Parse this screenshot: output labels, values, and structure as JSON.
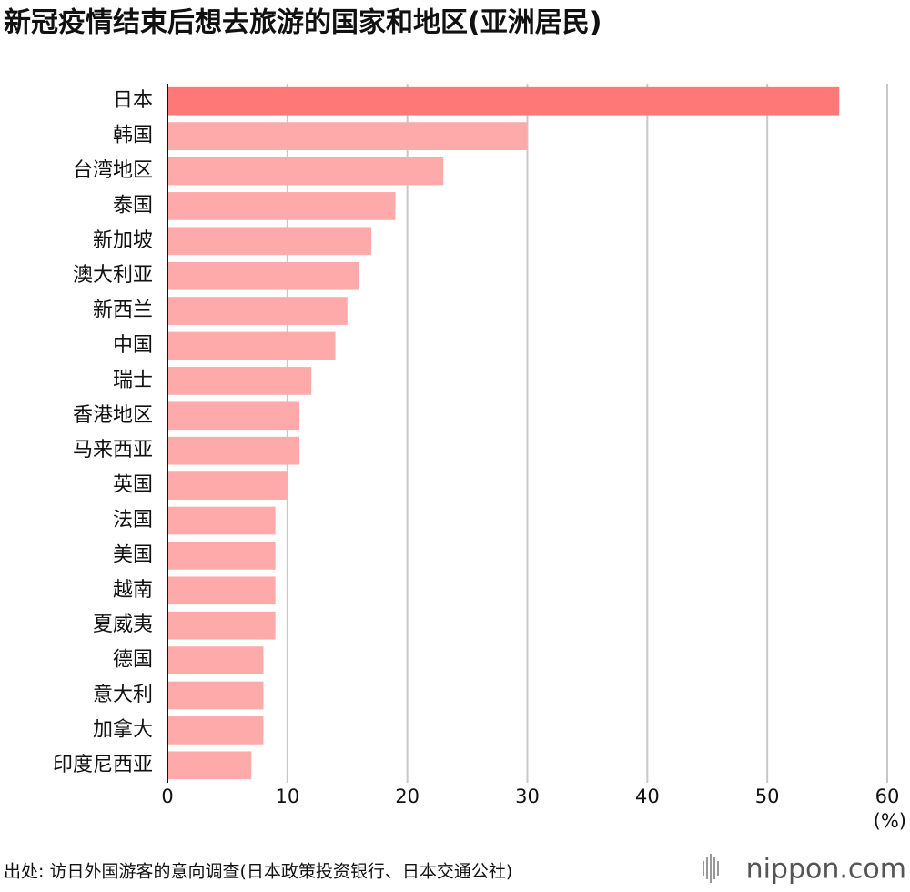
{
  "chart_data": {
    "type": "hbar",
    "title": "新冠疫情结束后想去旅游的国家和地区(亚洲居民)",
    "categories": [
      "日本",
      "韩国",
      "台湾地区",
      "泰国",
      "新加坡",
      "澳大利亚",
      "新西兰",
      "中国",
      "瑞士",
      "香港地区",
      "马来西亚",
      "英国",
      "法国",
      "美国",
      "越南",
      "夏威夷",
      "德国",
      "意大利",
      "加拿大",
      "印度尼西亚"
    ],
    "values": [
      56,
      30,
      23,
      19,
      17,
      16,
      15,
      14,
      12,
      11,
      11,
      10,
      9,
      9,
      9,
      9,
      8,
      8,
      8,
      7
    ],
    "colors": [
      "#ff7878",
      "#ffaaaa",
      "#ffaaaa",
      "#ffaaaa",
      "#ffaaaa",
      "#ffaaaa",
      "#ffaaaa",
      "#ffaaaa",
      "#ffaaaa",
      "#ffaaaa",
      "#ffaaaa",
      "#ffaaaa",
      "#ffaaaa",
      "#ffaaaa",
      "#ffaaaa",
      "#ffaaaa",
      "#ffaaaa",
      "#ffaaaa",
      "#ffaaaa",
      "#ffaaaa"
    ],
    "xlim": [
      0,
      60
    ],
    "xticks": [
      0,
      10,
      20,
      30,
      40,
      50,
      60
    ],
    "grid": true,
    "x_unit": "(%)",
    "source": "出处: 访日外国游客的意向调查(日本政策投资银行、日本交通公社)",
    "brand": "nippon.com"
  }
}
